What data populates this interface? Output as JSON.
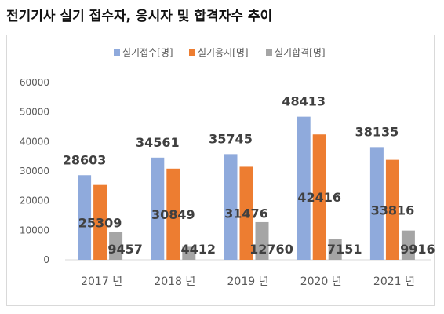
{
  "title": "전기기사 실기 접수자, 응시자 및 합격자수 추이",
  "chart_data": {
    "type": "bar",
    "categories": [
      "2017 년",
      "2018 년",
      "2019 년",
      "2020 년",
      "2021 년"
    ],
    "series": [
      {
        "name": "실기접수[명]",
        "color": "#8FAADC",
        "values": [
          28603,
          34561,
          35745,
          48413,
          38135
        ]
      },
      {
        "name": "실기응시[명]",
        "color": "#ED7D31",
        "values": [
          25309,
          30849,
          31476,
          42416,
          33816
        ]
      },
      {
        "name": "실기합격[명]",
        "color": "#A5A5A5",
        "values": [
          9457,
          4412,
          12760,
          7151,
          9916
        ]
      }
    ],
    "ylim": [
      0,
      60000
    ],
    "yticks": [
      0,
      10000,
      20000,
      30000,
      40000,
      50000,
      60000
    ],
    "legend_position": "top-center",
    "grid": false
  }
}
